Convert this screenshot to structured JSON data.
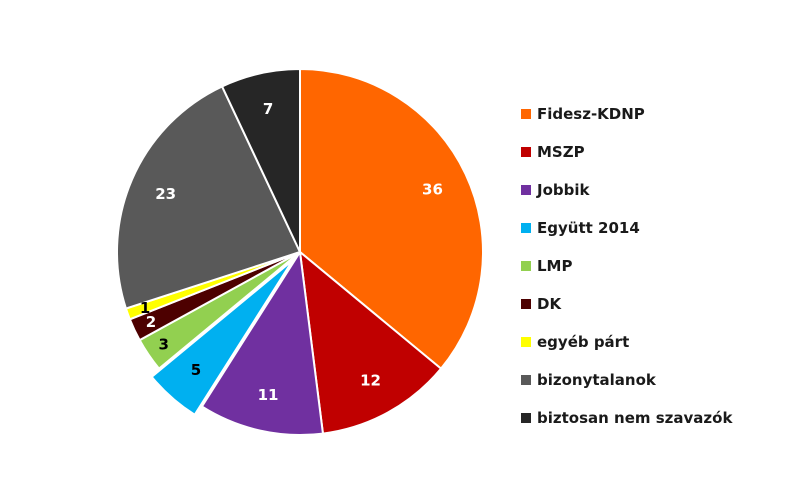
{
  "chart_data": {
    "type": "pie",
    "legend_position": "right",
    "slices": [
      {
        "label": "Fidesz-KDNP",
        "value": 36,
        "color": "#FF6600"
      },
      {
        "label": "MSZP",
        "value": 12,
        "color": "#C00000"
      },
      {
        "label": "Jobbik",
        "value": 11,
        "color": "#7030A0"
      },
      {
        "label": "Együtt 2014",
        "value": 5,
        "color": "#00B0F0",
        "exploded": true
      },
      {
        "label": "LMP",
        "value": 3,
        "color": "#92D050"
      },
      {
        "label": "DK",
        "value": 2,
        "color": "#4D0000"
      },
      {
        "label": "egyéb párt",
        "value": 1,
        "color": "#FFFF00"
      },
      {
        "label": "bizonytalanok",
        "value": 23,
        "color": "#595959"
      },
      {
        "label": "biztosan nem szavazók",
        "value": 7,
        "color": "#262626"
      }
    ]
  }
}
